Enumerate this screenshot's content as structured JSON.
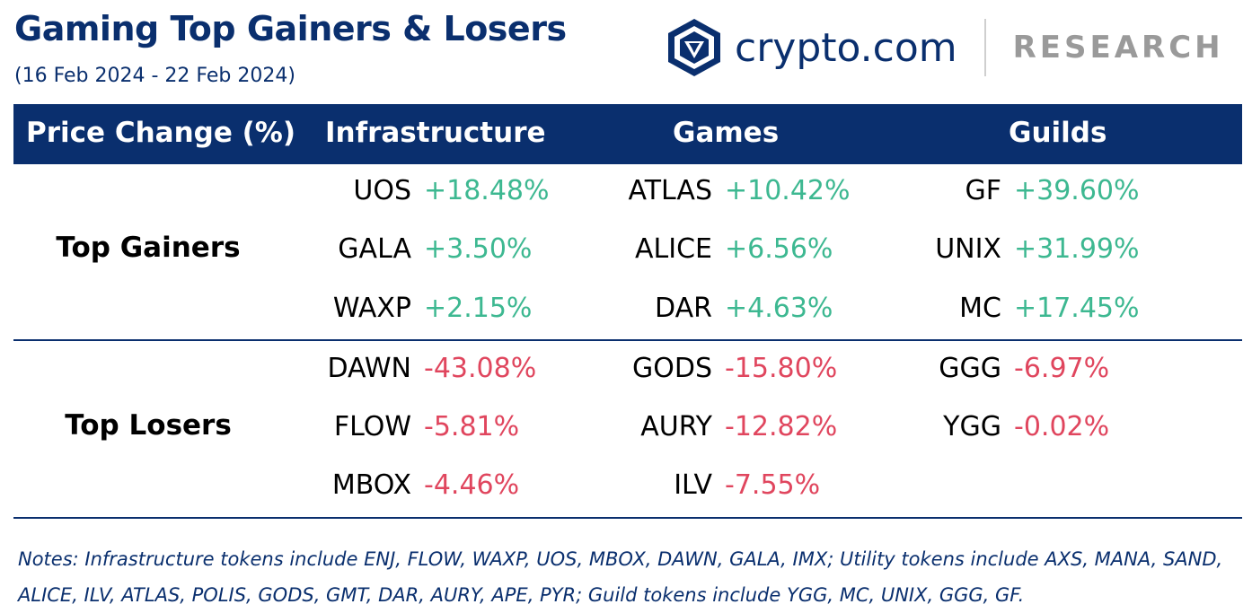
{
  "header": {
    "title": "Gaming Top Gainers & Losers",
    "subtitle": "(16 Feb 2024 - 22 Feb 2024)",
    "brand_name": "crypto.com",
    "brand_suffix": "RESEARCH"
  },
  "table": {
    "columns": [
      "Price Change (%)",
      "Infrastructure",
      "Games",
      "Guilds"
    ],
    "sections": [
      {
        "label": "Top Gainers",
        "rows": [
          {
            "infrastructure": {
              "symbol": "UOS",
              "change": "+18.48%"
            },
            "games": {
              "symbol": "ATLAS",
              "change": "+10.42%"
            },
            "guilds": {
              "symbol": "GF",
              "change": "+39.60%"
            }
          },
          {
            "infrastructure": {
              "symbol": "GALA",
              "change": "+3.50%"
            },
            "games": {
              "symbol": "ALICE",
              "change": "+6.56%"
            },
            "guilds": {
              "symbol": "UNIX",
              "change": "+31.99%"
            }
          },
          {
            "infrastructure": {
              "symbol": "WAXP",
              "change": "+2.15%"
            },
            "games": {
              "symbol": "DAR",
              "change": "+4.63%"
            },
            "guilds": {
              "symbol": "MC",
              "change": "+17.45%"
            }
          }
        ]
      },
      {
        "label": "Top Losers",
        "rows": [
          {
            "infrastructure": {
              "symbol": "DAWN",
              "change": "-43.08%"
            },
            "games": {
              "symbol": "GODS",
              "change": "-15.80%"
            },
            "guilds": {
              "symbol": "GGG",
              "change": "-6.97%"
            }
          },
          {
            "infrastructure": {
              "symbol": "FLOW",
              "change": "-5.81%"
            },
            "games": {
              "symbol": "AURY",
              "change": "-12.82%"
            },
            "guilds": {
              "symbol": "YGG",
              "change": "-0.02%"
            }
          },
          {
            "infrastructure": {
              "symbol": "MBOX",
              "change": "-4.46%"
            },
            "games": {
              "symbol": "ILV",
              "change": "-7.55%"
            },
            "guilds": {
              "symbol": "",
              "change": ""
            }
          }
        ]
      }
    ]
  },
  "notes": {
    "line1": "Notes: Infrastructure tokens include ENJ, FLOW, WAXP, UOS, MBOX, DAWN, GALA, IMX; Utility tokens include AXS, MANA, SAND,",
    "line2": "ALICE, ILV, ATLAS, POLIS, GODS, GMT, DAR, AURY, APE, PYR; Guild tokens include YGG, MC, UNIX, GGG, GF."
  },
  "colors": {
    "brand_navy": "#0a2f6e",
    "gain_green": "#3db891",
    "loss_red": "#e0465e",
    "research_gray": "#9a9a9a"
  },
  "icons": [
    "crypto-com-lion-shield-icon"
  ]
}
